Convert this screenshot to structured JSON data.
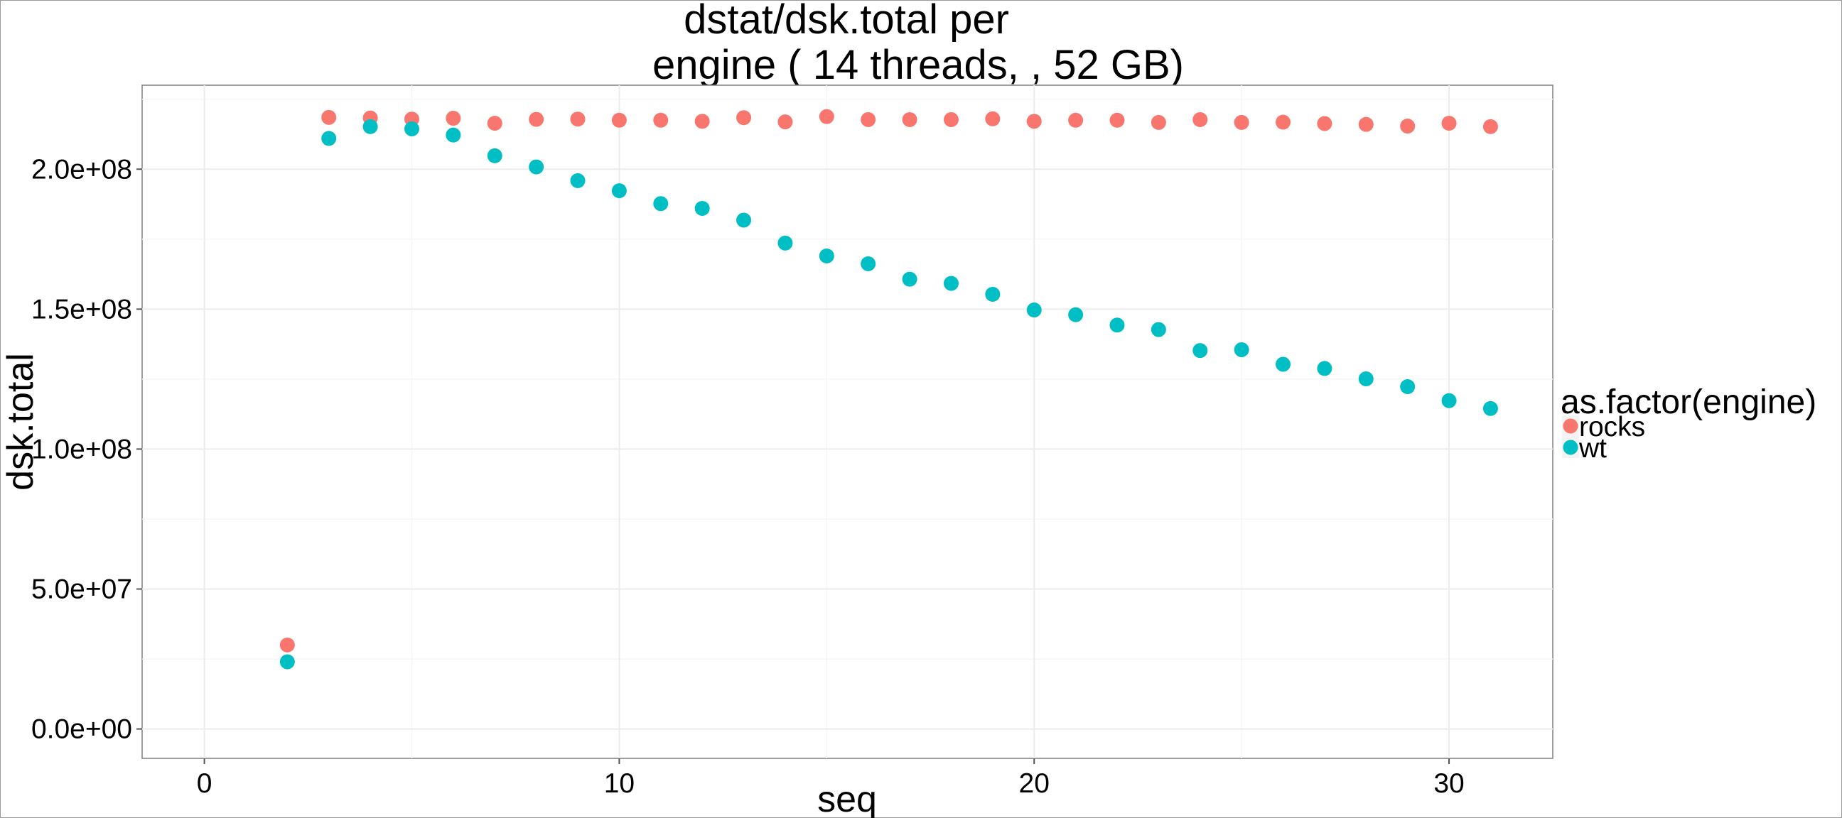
{
  "chart_data": {
    "type": "scatter",
    "title_line1": "dstat/dsk.total per",
    "title_line2": "engine ( 14  threads, , 52 GB)",
    "xlabel": "seq",
    "ylabel": "dsk.total",
    "xlim": [
      -1.5,
      32.5
    ],
    "ylim": [
      -10500000,
      230000000
    ],
    "x_ticks": [
      0,
      10,
      20,
      30
    ],
    "x_tick_labels": [
      "0",
      "10",
      "20",
      "30"
    ],
    "y_ticks": [
      0,
      50000000,
      100000000,
      150000000,
      200000000
    ],
    "y_tick_labels": [
      "0.0e+00",
      "5.0e+07",
      "1.0e+08",
      "1.5e+08",
      "2.0e+08"
    ],
    "grid": true,
    "legend_title": "as.factor(engine)",
    "legend_position": "right",
    "series": [
      {
        "name": "rocks",
        "color": "#F8766D",
        "x": [
          2,
          3,
          4,
          5,
          6,
          7,
          8,
          9,
          10,
          11,
          12,
          13,
          14,
          15,
          16,
          17,
          18,
          19,
          20,
          21,
          22,
          23,
          24,
          25,
          26,
          27,
          28,
          29,
          30,
          31
        ],
        "y": [
          30000000,
          218500000,
          218300000,
          217900000,
          218200000,
          216400000,
          217800000,
          217900000,
          217500000,
          217500000,
          217100000,
          218400000,
          216900000,
          218800000,
          217700000,
          217700000,
          217700000,
          218000000,
          217100000,
          217500000,
          217500000,
          216700000,
          217700000,
          216700000,
          216800000,
          216300000,
          216000000,
          215400000,
          216400000,
          215200000
        ]
      },
      {
        "name": "wt",
        "color": "#00BFC4",
        "x": [
          2,
          3,
          4,
          5,
          6,
          7,
          8,
          9,
          10,
          11,
          12,
          13,
          14,
          15,
          16,
          17,
          18,
          19,
          20,
          21,
          22,
          23,
          24,
          25,
          26,
          27,
          28,
          29,
          30,
          31
        ],
        "y": [
          24000000,
          211000000,
          215200000,
          214400000,
          212200000,
          204800000,
          200800000,
          195900000,
          192300000,
          187700000,
          186000000,
          181800000,
          173600000,
          169000000,
          166200000,
          160700000,
          159200000,
          155300000,
          149700000,
          148000000,
          144300000,
          142700000,
          135200000,
          135500000,
          130300000,
          128800000,
          125100000,
          122300000,
          117300000,
          114500000
        ]
      }
    ]
  }
}
